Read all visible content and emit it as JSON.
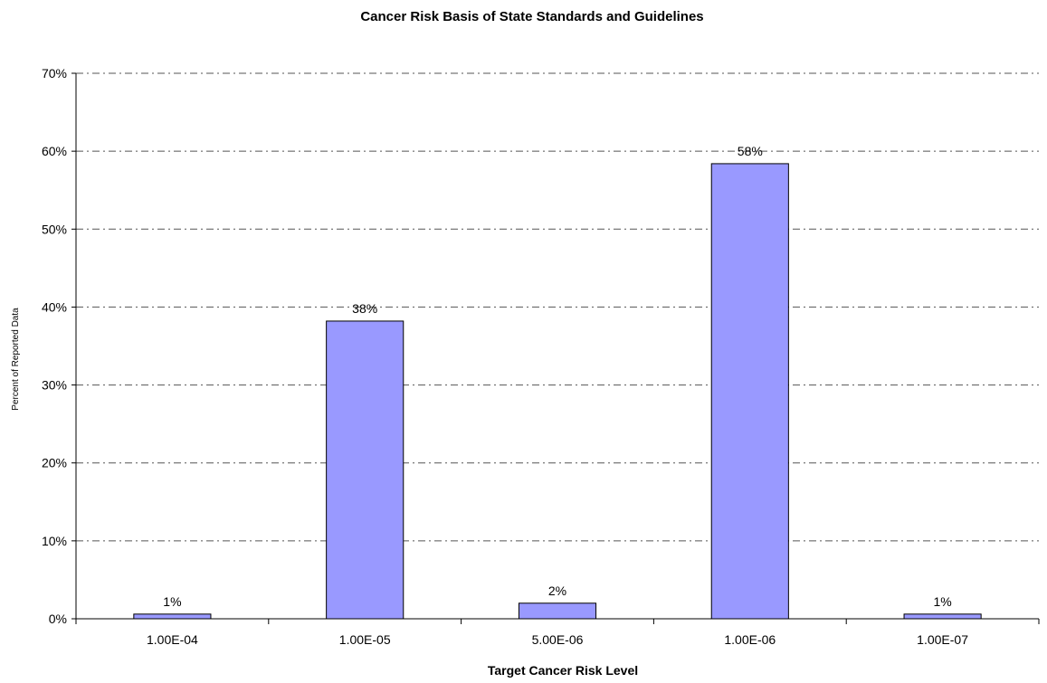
{
  "chart_data": {
    "type": "bar",
    "title": "Cancer Risk Basis of State Standards and Guidelines",
    "xlabel": "Target Cancer Risk Level",
    "ylabel": "Percent of Reported Data",
    "categories": [
      "1.00E-04",
      "1.00E-05",
      "5.00E-06",
      "1.00E-06",
      "1.00E-07"
    ],
    "values": [
      0.6,
      38.2,
      2.0,
      58.4,
      0.6
    ],
    "data_labels": [
      "1%",
      "38%",
      "2%",
      "58%",
      "1%"
    ],
    "ylim": [
      0,
      70
    ],
    "yticks": [
      0,
      10,
      20,
      30,
      40,
      50,
      60,
      70
    ],
    "ytick_labels": [
      "0%",
      "10%",
      "20%",
      "30%",
      "40%",
      "50%",
      "60%",
      "70%"
    ],
    "grid": true,
    "legend": "none",
    "colors": {
      "bar_fill": "#9999ff",
      "bar_stroke": "#000000",
      "grid": "#555555",
      "axis": "#000000"
    }
  }
}
